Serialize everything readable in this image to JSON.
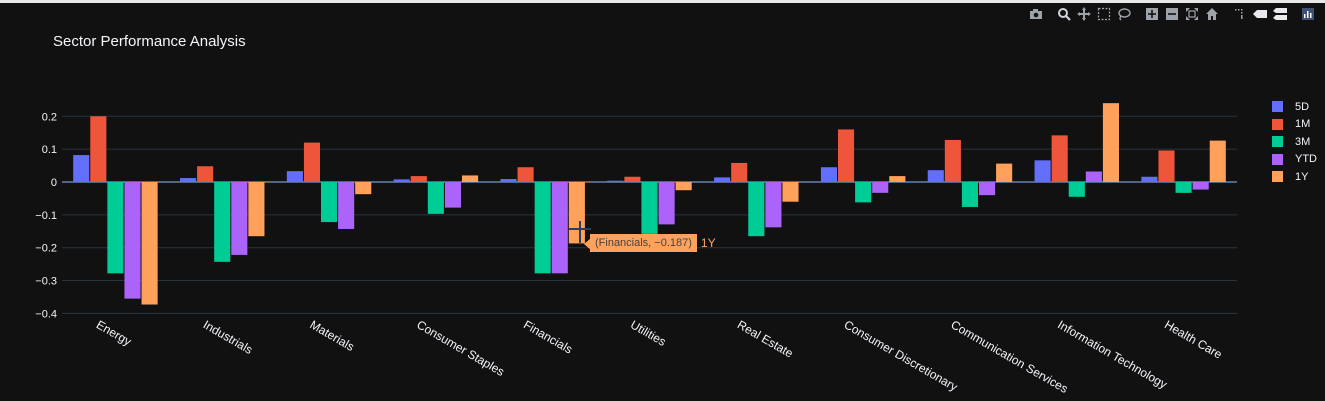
{
  "modebar": {
    "icons": [
      "camera-icon",
      "zoom-icon",
      "pan-icon",
      "box-select-icon",
      "lasso-icon",
      "zoom-in-icon",
      "zoom-out-icon",
      "autoscale-icon",
      "reset-axes-icon",
      "spike-lines-icon",
      "hover-closest-icon",
      "hover-compare-icon",
      "plotly-logo-icon"
    ]
  },
  "chart_data": {
    "type": "bar",
    "title": "Sector Performance Analysis",
    "categories": [
      "Energy",
      "Industrials",
      "Materials",
      "Consumer Staples",
      "Financials",
      "Utilities",
      "Real Estate",
      "Consumer Discretionary",
      "Communication Services",
      "Information Technology",
      "Health Care"
    ],
    "series": [
      {
        "name": "5D",
        "color": "#636efa",
        "values": [
          0.082,
          0.012,
          0.033,
          0.008,
          0.009,
          0.004,
          0.014,
          0.045,
          0.036,
          0.066,
          0.016
        ]
      },
      {
        "name": "1M",
        "color": "#ef553b",
        "values": [
          0.2,
          0.048,
          0.12,
          0.018,
          0.045,
          0.016,
          0.058,
          0.16,
          0.128,
          0.142,
          0.096
        ]
      },
      {
        "name": "3M",
        "color": "#00cc96",
        "values": [
          -0.278,
          -0.243,
          -0.122,
          -0.097,
          -0.278,
          -0.158,
          -0.165,
          -0.062,
          -0.076,
          -0.045,
          -0.033
        ]
      },
      {
        "name": "YTD",
        "color": "#ab63fa",
        "values": [
          -0.355,
          -0.222,
          -0.143,
          -0.078,
          -0.278,
          -0.129,
          -0.138,
          -0.033,
          -0.04,
          0.032,
          -0.023
        ]
      },
      {
        "name": "1Y",
        "color": "#ffa15a",
        "values": [
          -0.373,
          -0.165,
          -0.037,
          0.02,
          -0.187,
          -0.025,
          -0.06,
          0.018,
          0.056,
          0.24,
          0.126
        ]
      }
    ],
    "yticks": [
      0.2,
      0.1,
      0,
      -0.1,
      -0.2,
      -0.3,
      -0.4
    ],
    "ytick_labels": [
      "0.2",
      "0.1",
      "0",
      "−0.1",
      "−0.2",
      "−0.3",
      "−0.4"
    ],
    "ylim": [
      -0.4,
      0.27
    ],
    "grid": true,
    "legend_position": "top-right",
    "background": "#111111",
    "hover": {
      "text": "(Financials, −0.187)",
      "series": "1Y"
    }
  }
}
